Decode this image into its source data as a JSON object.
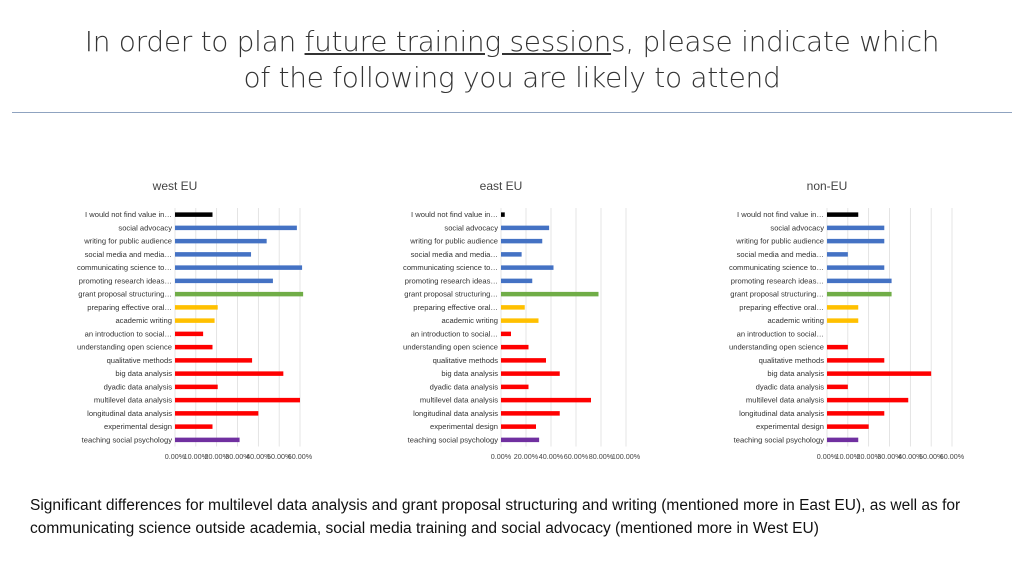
{
  "slide": {
    "title_part1": "In order to plan ",
    "title_underlined": "future training session",
    "title_part2": "s, please indicate which",
    "title_line2": "of the following you are likely to attend",
    "footnote": "Significant differences for multilevel data analysis and grant proposal structuring and writing (mentioned more in East EU), as well as for communicating science outside academia, social media training and social advocacy (mentioned more in West EU)"
  },
  "chart_data": [
    {
      "type": "bar",
      "orientation": "horizontal",
      "title": "west EU",
      "categories": [
        "I would not find value in…",
        "social advocacy",
        "writing for public audience",
        "social media and media…",
        "communicating science to…",
        "promoting research ideas…",
        "grant proposal structuring…",
        "preparing effective oral…",
        "academic writing",
        "an introduction to social…",
        "understanding open science",
        "qualitative methods",
        "big data analysis",
        "dyadic data analysis",
        "multilevel data analysis",
        "longitudinal data analysis",
        "experimental design",
        "teaching social psychology"
      ],
      "values": [
        0.18,
        0.585,
        0.44,
        0.365,
        0.61,
        0.47,
        0.615,
        0.205,
        0.19,
        0.135,
        0.18,
        0.37,
        0.52,
        0.205,
        0.6,
        0.4,
        0.18,
        0.31
      ],
      "colors": [
        "#000000",
        "#4472c4",
        "#4472c4",
        "#4472c4",
        "#4472c4",
        "#4472c4",
        "#70ad47",
        "#ffc000",
        "#ffc000",
        "#ff0000",
        "#ff0000",
        "#ff0000",
        "#ff0000",
        "#ff0000",
        "#ff0000",
        "#ff0000",
        "#ff0000",
        "#7030a0"
      ],
      "xlim": [
        0,
        0.6
      ],
      "ticks": [
        "0.00%",
        "10.00%",
        "20.00%",
        "30.00%",
        "40.00%",
        "50.00%",
        "60.00%"
      ]
    },
    {
      "type": "bar",
      "orientation": "horizontal",
      "title": "east EU",
      "categories": [
        "I would not find value in…",
        "social advocacy",
        "writing for public audience",
        "social media and media…",
        "communicating science to…",
        "promoting research ideas…",
        "grant proposal structuring…",
        "preparing effective oral…",
        "academic writing",
        "an introduction to social…",
        "understanding open science",
        "qualitative methods",
        "big data analysis",
        "dyadic data analysis",
        "multilevel data analysis",
        "longitudinal data analysis",
        "experimental design",
        "teaching social psychology"
      ],
      "values": [
        0.03,
        0.385,
        0.33,
        0.165,
        0.42,
        0.25,
        0.78,
        0.19,
        0.3,
        0.08,
        0.22,
        0.36,
        0.47,
        0.22,
        0.72,
        0.47,
        0.28,
        0.305
      ],
      "colors": [
        "#000000",
        "#4472c4",
        "#4472c4",
        "#4472c4",
        "#4472c4",
        "#4472c4",
        "#70ad47",
        "#ffc000",
        "#ffc000",
        "#ff0000",
        "#ff0000",
        "#ff0000",
        "#ff0000",
        "#ff0000",
        "#ff0000",
        "#ff0000",
        "#ff0000",
        "#7030a0"
      ],
      "xlim": [
        0,
        1.0
      ],
      "ticks": [
        "0.00%",
        "20.00%",
        "40.00%",
        "60.00%",
        "80.00%",
        "100.00%"
      ]
    },
    {
      "type": "bar",
      "orientation": "horizontal",
      "title": "non-EU",
      "categories": [
        "I would not find value in…",
        "social advocacy",
        "writing for public audience",
        "social media and media…",
        "communicating science to…",
        "promoting research ideas…",
        "grant proposal structuring…",
        "preparing effective oral…",
        "academic writing",
        "an introduction to social…",
        "understanding open science",
        "qualitative methods",
        "big data analysis",
        "dyadic data analysis",
        "multilevel data analysis",
        "longitudinal data analysis",
        "experimental design",
        "teaching social psychology"
      ],
      "values": [
        0.15,
        0.275,
        0.275,
        0.1,
        0.275,
        0.31,
        0.31,
        0.15,
        0.15,
        0.0,
        0.1,
        0.275,
        0.5,
        0.1,
        0.39,
        0.275,
        0.2,
        0.15
      ],
      "colors": [
        "#000000",
        "#4472c4",
        "#4472c4",
        "#4472c4",
        "#4472c4",
        "#4472c4",
        "#70ad47",
        "#ffc000",
        "#ffc000",
        "#ff0000",
        "#ff0000",
        "#ff0000",
        "#ff0000",
        "#ff0000",
        "#ff0000",
        "#ff0000",
        "#ff0000",
        "#7030a0"
      ],
      "xlim": [
        0,
        0.6
      ],
      "ticks": [
        "0.00%",
        "10.00%",
        "20.00%",
        "30.00%",
        "40.00%",
        "50.00%",
        "60.00%"
      ]
    }
  ]
}
